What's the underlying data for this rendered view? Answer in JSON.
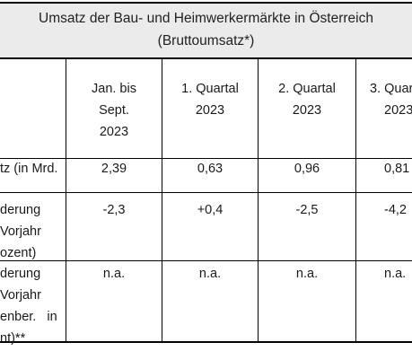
{
  "title": {
    "line1": "Umsatz der Bau- und Heimwerkermärkte in Österreich",
    "line2": "(Bruttoumsatz*)"
  },
  "columns": [
    {
      "lines": [
        "Jan. bis",
        "Sept.",
        "2023"
      ]
    },
    {
      "lines": [
        "1. Quartal",
        "2023"
      ]
    },
    {
      "lines": [
        "2. Quartal",
        "2023"
      ]
    },
    {
      "lines": [
        "3. Quar",
        "2023"
      ]
    }
  ],
  "rows": [
    {
      "label_lines": [
        "tz (in Mrd."
      ],
      "values": [
        "2,39",
        "0,63",
        "0,96",
        "0,81"
      ]
    },
    {
      "label_lines": [
        "derung",
        "Vorjahr",
        "ozent)"
      ],
      "values": [
        "-2,3",
        "+0,4",
        "-2,5",
        "-4,2"
      ]
    },
    {
      "label_lines": [
        "derung",
        "Vorjahr",
        "enber.   in",
        "nt)**"
      ],
      "values": [
        "n.a.",
        "n.a.",
        "n.a.",
        "n.a."
      ]
    }
  ]
}
